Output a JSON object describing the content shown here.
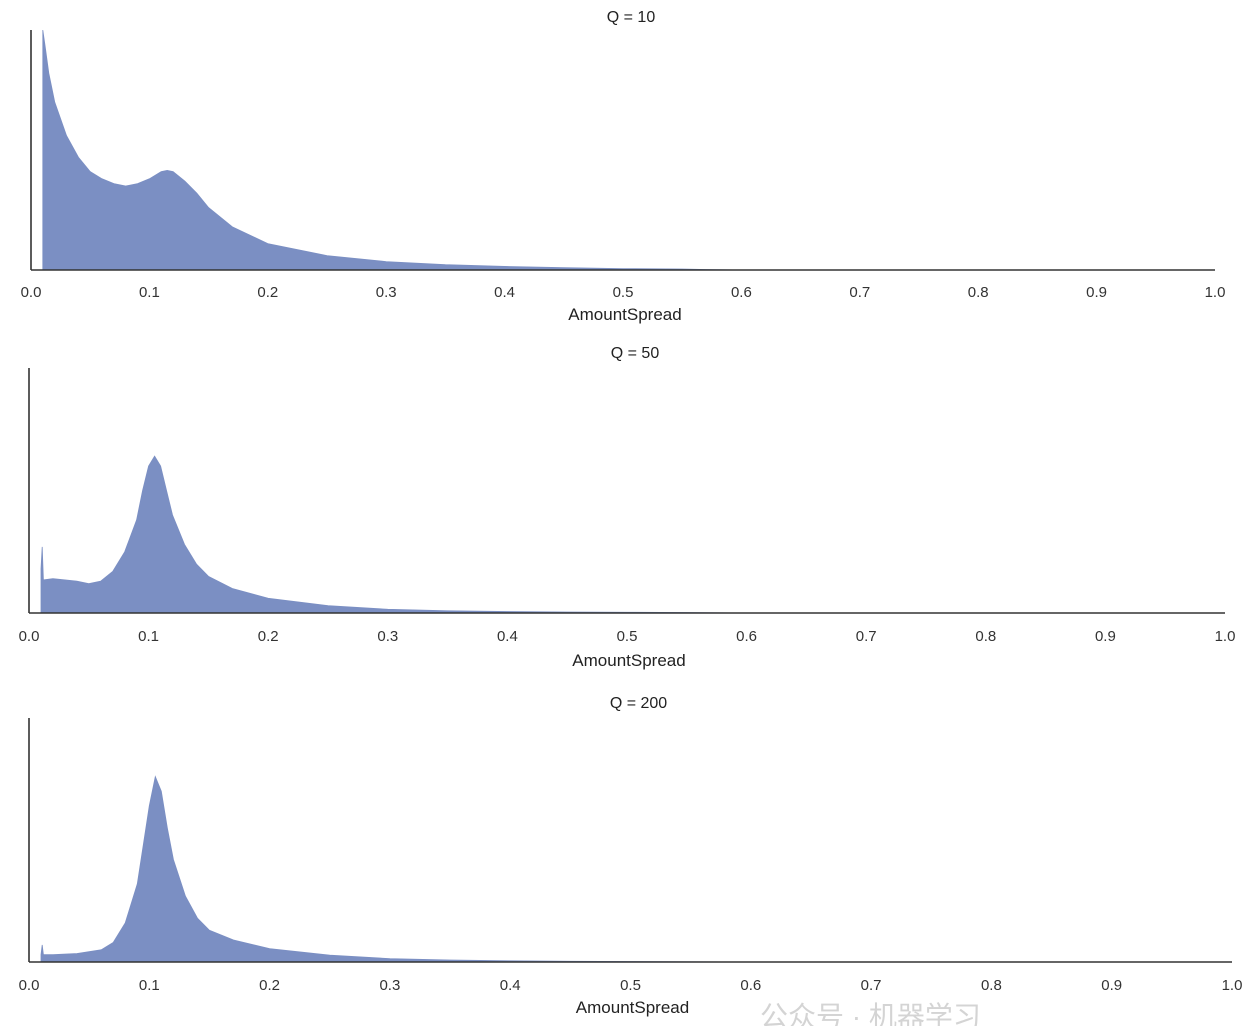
{
  "chart_data": [
    {
      "type": "area",
      "title": "Q = 10",
      "xlabel": "AmountSpread",
      "ylabel": "",
      "xlim": [
        0.0,
        1.0
      ],
      "x_ticks": [
        "0.0",
        "0.1",
        "0.2",
        "0.3",
        "0.4",
        "0.5",
        "0.6",
        "0.7",
        "0.8",
        "0.9",
        "1.0"
      ],
      "color": "#7b8fc3",
      "x": [
        0.01,
        0.012,
        0.015,
        0.02,
        0.03,
        0.04,
        0.05,
        0.06,
        0.07,
        0.08,
        0.09,
        0.1,
        0.11,
        0.115,
        0.12,
        0.13,
        0.14,
        0.15,
        0.17,
        0.2,
        0.25,
        0.3,
        0.35,
        0.4,
        0.45,
        0.5,
        0.55,
        0.57,
        0.6,
        1.0
      ],
      "values": [
        1.0,
        0.93,
        0.82,
        0.7,
        0.56,
        0.47,
        0.41,
        0.38,
        0.36,
        0.35,
        0.36,
        0.38,
        0.41,
        0.415,
        0.41,
        0.37,
        0.32,
        0.26,
        0.18,
        0.11,
        0.06,
        0.035,
        0.022,
        0.015,
        0.01,
        0.006,
        0.004,
        0.002,
        0.0,
        0.0
      ]
    },
    {
      "type": "area",
      "title": "Q = 50",
      "xlabel": "AmountSpread",
      "ylabel": "",
      "xlim": [
        0.0,
        1.0
      ],
      "x_ticks": [
        "0.0",
        "0.1",
        "0.2",
        "0.3",
        "0.4",
        "0.5",
        "0.6",
        "0.7",
        "0.8",
        "0.9",
        "1.0"
      ],
      "color": "#7b8fc3",
      "x": [
        0.01,
        0.011,
        0.012,
        0.02,
        0.03,
        0.04,
        0.05,
        0.06,
        0.07,
        0.08,
        0.09,
        0.095,
        0.1,
        0.105,
        0.11,
        0.115,
        0.12,
        0.13,
        0.14,
        0.15,
        0.17,
        0.2,
        0.25,
        0.3,
        0.35,
        0.4,
        0.45,
        0.5,
        0.55,
        0.6,
        1.0
      ],
      "values": [
        0.18,
        0.27,
        0.135,
        0.14,
        0.135,
        0.13,
        0.12,
        0.13,
        0.17,
        0.25,
        0.38,
        0.5,
        0.6,
        0.64,
        0.6,
        0.5,
        0.4,
        0.28,
        0.2,
        0.15,
        0.1,
        0.06,
        0.03,
        0.015,
        0.009,
        0.006,
        0.004,
        0.003,
        0.002,
        0.0,
        0.0
      ]
    },
    {
      "type": "area",
      "title": "Q = 200",
      "xlabel": "AmountSpread",
      "ylabel": "",
      "xlim": [
        0.0,
        1.0
      ],
      "x_ticks": [
        "0.0",
        "0.1",
        "0.2",
        "0.3",
        "0.4",
        "0.5",
        "0.6",
        "0.7",
        "0.8",
        "0.9",
        "1.0"
      ],
      "color": "#7b8fc3",
      "x": [
        0.01,
        0.011,
        0.012,
        0.02,
        0.04,
        0.06,
        0.07,
        0.08,
        0.09,
        0.095,
        0.1,
        0.105,
        0.11,
        0.115,
        0.12,
        0.13,
        0.14,
        0.15,
        0.17,
        0.2,
        0.25,
        0.3,
        0.35,
        0.4,
        0.45,
        0.5,
        0.55,
        0.6,
        1.0
      ],
      "values": [
        0.03,
        0.07,
        0.03,
        0.03,
        0.035,
        0.05,
        0.08,
        0.16,
        0.32,
        0.48,
        0.64,
        0.76,
        0.7,
        0.55,
        0.42,
        0.27,
        0.18,
        0.13,
        0.09,
        0.055,
        0.028,
        0.014,
        0.008,
        0.005,
        0.003,
        0.002,
        0.001,
        0.0,
        0.0
      ]
    }
  ],
  "watermark": "公众号 · 机器学习"
}
